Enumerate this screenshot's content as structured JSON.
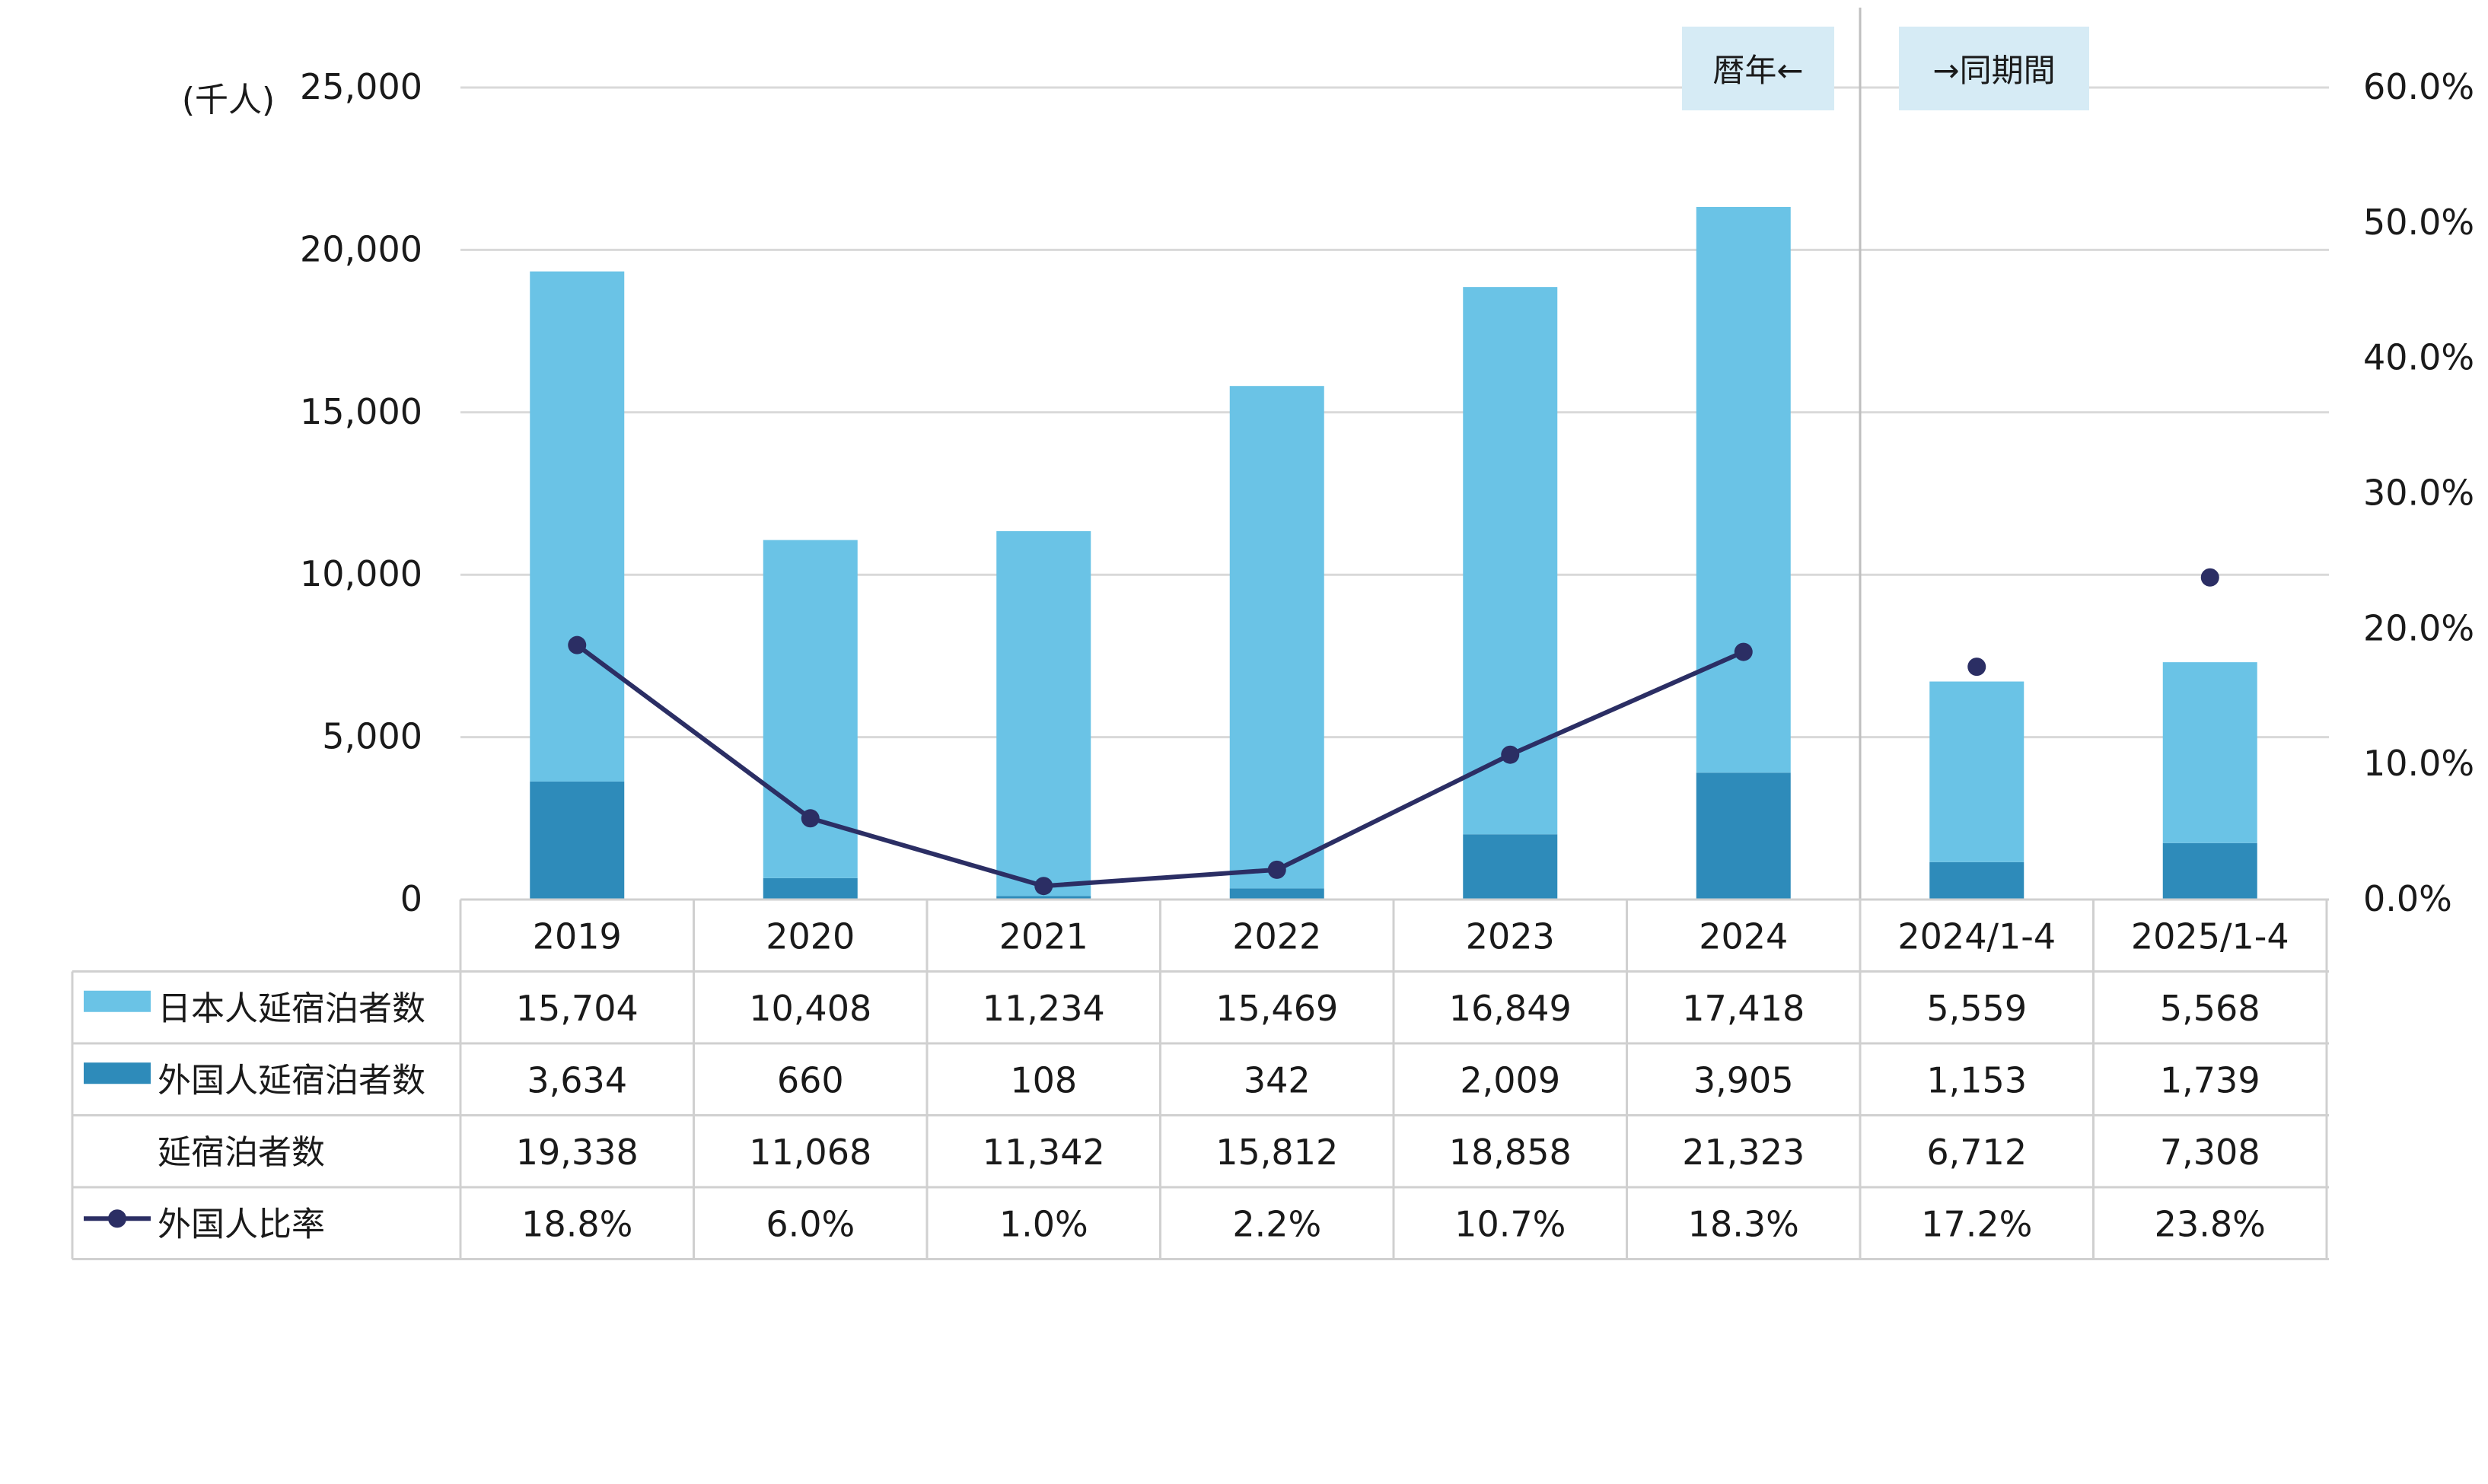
{
  "chart_data": {
    "type": "bar",
    "stacked": true,
    "unit_label": "(千人)",
    "categories": [
      "2019",
      "2020",
      "2021",
      "2022",
      "2023",
      "2024",
      "2024/1-4",
      "2025/1-4"
    ],
    "series": [
      {
        "name": "日本人延宿泊者数",
        "kind": "bar",
        "axis": "left",
        "color": "#6ac3e6",
        "values": [
          15704,
          10408,
          11234,
          15469,
          16849,
          17418,
          5559,
          5568
        ],
        "labels": [
          "15,704",
          "10,408",
          "11,234",
          "15,469",
          "16,849",
          "17,418",
          "5,559",
          "5,568"
        ]
      },
      {
        "name": "外国人延宿泊者数",
        "kind": "bar",
        "axis": "left",
        "color": "#2e8bba",
        "values": [
          3634,
          660,
          108,
          342,
          2009,
          3905,
          1153,
          1739
        ],
        "labels": [
          "3,634",
          "660",
          "108",
          "342",
          "2,009",
          "3,905",
          "1,153",
          "1,739"
        ]
      },
      {
        "name": "延宿泊者数",
        "kind": "total",
        "values": [
          19338,
          11068,
          11342,
          15812,
          18858,
          21323,
          6712,
          7308
        ],
        "labels": [
          "19,338",
          "11,068",
          "11,342",
          "15,812",
          "18,858",
          "21,323",
          "6,712",
          "7,308"
        ]
      },
      {
        "name": "外国人比率",
        "kind": "line",
        "axis": "right",
        "color": "#2b2e64",
        "values": [
          18.8,
          6.0,
          1.0,
          2.2,
          10.7,
          18.3,
          17.2,
          23.8
        ],
        "labels": [
          "18.8%",
          "6.0%",
          "1.0%",
          "2.2%",
          "10.7%",
          "18.3%",
          "17.2%",
          "23.8%"
        ]
      }
    ],
    "y_left": {
      "ylim": [
        0,
        25000
      ],
      "ticks": [
        "0",
        "5,000",
        "10,000",
        "15,000",
        "20,000",
        "25,000"
      ]
    },
    "y_right": {
      "ylim": [
        0,
        60
      ],
      "ticks": [
        "0.0%",
        "10.0%",
        "20.0%",
        "30.0%",
        "40.0%",
        "50.0%",
        "60.0%"
      ]
    },
    "annotations": [
      "暦年←",
      "→同期間"
    ],
    "colors": {
      "annotation_bg": "#d6ebf5",
      "grid": "#d9d9d9",
      "table_border": "#d0d0d0"
    },
    "grid": true,
    "legend": "data-table"
  }
}
